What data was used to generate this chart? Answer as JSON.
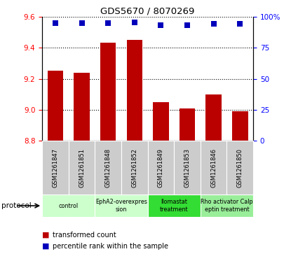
{
  "title": "GDS5670 / 8070269",
  "samples": [
    "GSM1261847",
    "GSM1261851",
    "GSM1261848",
    "GSM1261852",
    "GSM1261849",
    "GSM1261853",
    "GSM1261846",
    "GSM1261850"
  ],
  "transformed_counts": [
    9.25,
    9.24,
    9.43,
    9.45,
    9.05,
    9.01,
    9.1,
    8.99
  ],
  "percentile_y_scaled": [
    9.558,
    9.558,
    9.556,
    9.562,
    9.545,
    9.543,
    9.552,
    9.552
  ],
  "ylim": [
    8.8,
    9.6
  ],
  "yticks_left": [
    8.8,
    9.0,
    9.2,
    9.4,
    9.6
  ],
  "yticks_right_vals": [
    0,
    25,
    50,
    75,
    100
  ],
  "bar_color": "#bb0000",
  "dot_color": "#0000bb",
  "groups": [
    {
      "label": "control",
      "indices": [
        0,
        1
      ],
      "color": "#ccffcc"
    },
    {
      "label": "EphA2-overexpres\nsion",
      "indices": [
        2,
        3
      ],
      "color": "#ccffcc"
    },
    {
      "label": "Ilomastat\ntreatment",
      "indices": [
        4,
        5
      ],
      "color": "#33dd33"
    },
    {
      "label": "Rho activator Calp\neptin treatment",
      "indices": [
        6,
        7
      ],
      "color": "#99ee99"
    }
  ],
  "sample_bg_color": "#cccccc",
  "bar_width": 0.6,
  "dot_size": 30,
  "legend_items": [
    "transformed count",
    "percentile rank within the sample"
  ],
  "legend_colors": [
    "#bb0000",
    "#0000bb"
  ]
}
